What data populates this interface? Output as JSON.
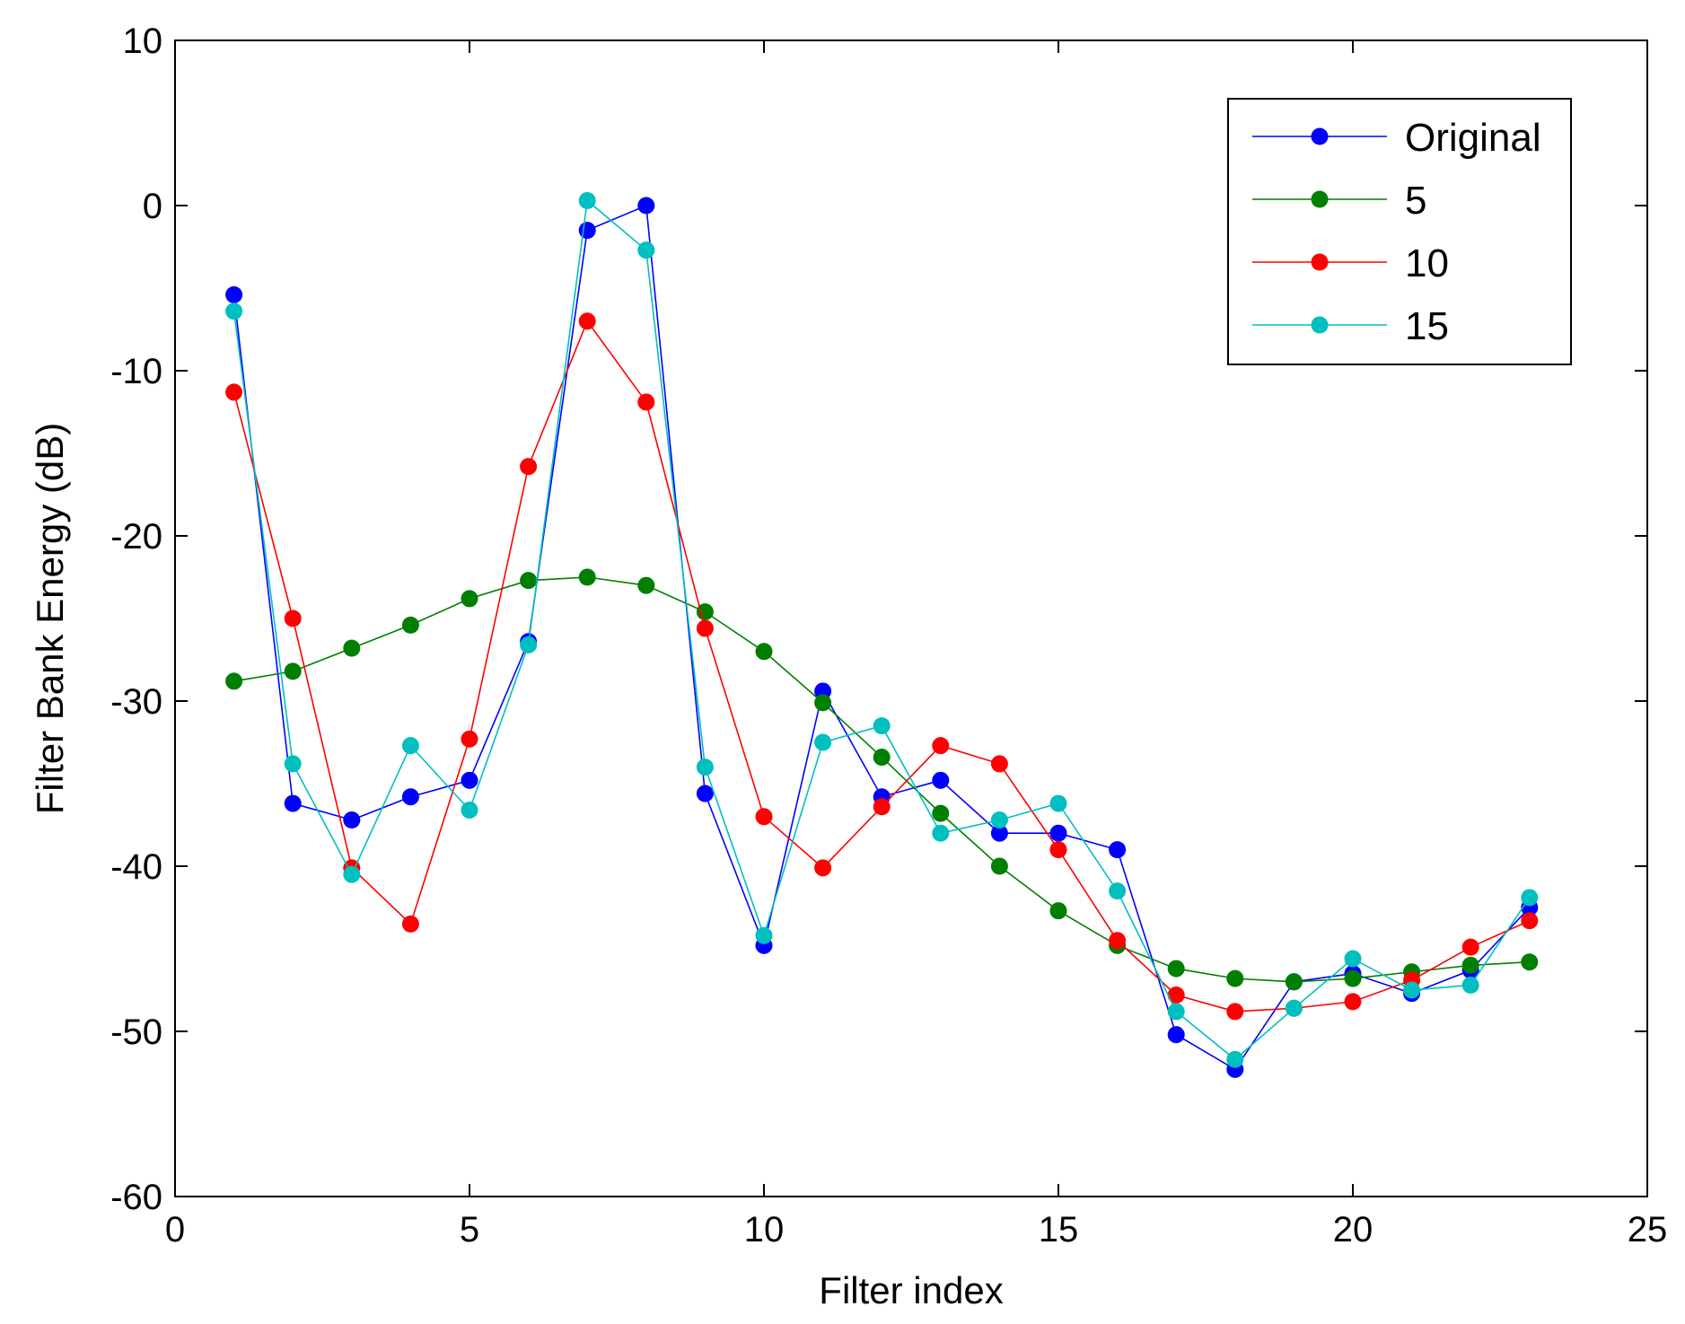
{
  "chart_data": {
    "type": "line",
    "title": "",
    "xlabel": "Filter index",
    "ylabel": "Filter Bank Energy (dB)",
    "xlim": [
      0,
      25
    ],
    "ylim": [
      -60,
      10
    ],
    "xticks": [
      0,
      5,
      10,
      15,
      20,
      25
    ],
    "yticks": [
      10,
      0,
      -10,
      -20,
      -30,
      -40,
      -50,
      -60
    ],
    "grid": false,
    "legend_position": "top-right",
    "x": [
      1,
      2,
      3,
      4,
      5,
      6,
      7,
      8,
      9,
      10,
      11,
      12,
      13,
      14,
      15,
      16,
      17,
      18,
      19,
      20,
      21,
      22,
      23
    ],
    "series": [
      {
        "name": "Original",
        "color": "#0000ff",
        "values": [
          -5.4,
          -36.2,
          -37.2,
          -35.8,
          -34.8,
          -26.4,
          -1.5,
          0.0,
          -35.6,
          -44.8,
          -29.4,
          -35.8,
          -34.8,
          -38.0,
          -38.0,
          -39.0,
          -50.2,
          -52.3,
          -47.0,
          -46.5,
          -47.7,
          -46.3,
          -42.5
        ]
      },
      {
        "name": "5",
        "color": "#007f00",
        "values": [
          -28.8,
          -28.2,
          -26.8,
          -25.4,
          -23.8,
          -22.7,
          -22.5,
          -23.0,
          -24.6,
          -27.0,
          -30.1,
          -33.4,
          -36.8,
          -40.0,
          -42.7,
          -44.8,
          -46.2,
          -46.8,
          -47.0,
          -46.8,
          -46.4,
          -46.0,
          -45.8
        ]
      },
      {
        "name": "10",
        "color": "#ff0000",
        "values": [
          -11.3,
          -25.0,
          -40.1,
          -43.5,
          -32.3,
          -15.8,
          -7.0,
          -11.9,
          -25.6,
          -37.0,
          -40.1,
          -36.4,
          -32.7,
          -33.8,
          -39.0,
          -44.5,
          -47.8,
          -48.8,
          -48.6,
          -48.2,
          -46.9,
          -44.9,
          -43.3
        ]
      },
      {
        "name": "15",
        "color": "#00bfbf",
        "values": [
          -6.4,
          -33.8,
          -40.5,
          -32.7,
          -36.6,
          -26.6,
          0.3,
          -2.7,
          -34.0,
          -44.2,
          -32.5,
          -31.5,
          -38.0,
          -37.2,
          -36.2,
          -41.5,
          -48.8,
          -51.7,
          -48.6,
          -45.6,
          -47.5,
          -47.2,
          -41.9
        ]
      }
    ]
  }
}
